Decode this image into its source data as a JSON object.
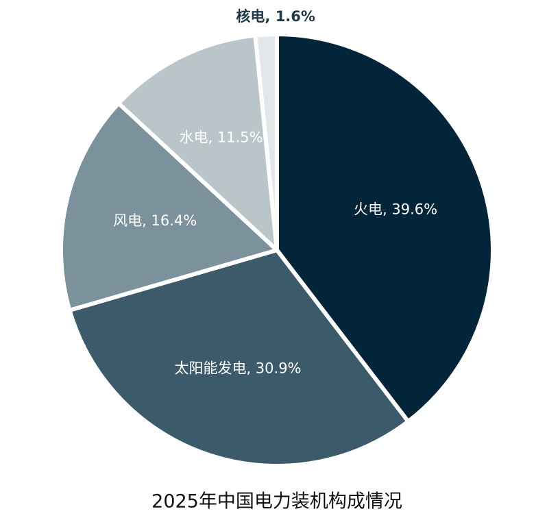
{
  "chart_data": {
    "type": "pie",
    "title": "2025年中国电力装机构成情况",
    "categories": [
      "火电",
      "太阳能发电",
      "风电",
      "水电",
      "核电"
    ],
    "values": [
      39.6,
      30.9,
      16.4,
      11.5,
      1.6
    ],
    "value_labels": [
      ", 39.6%",
      ", 30.9%",
      ", 16.4%",
      ", 11.5%",
      ", 1.6%"
    ],
    "colors": [
      "#02253a",
      "#3b5b6b",
      "#7b919b",
      "#bac5ca",
      "#e3e7ea"
    ]
  }
}
